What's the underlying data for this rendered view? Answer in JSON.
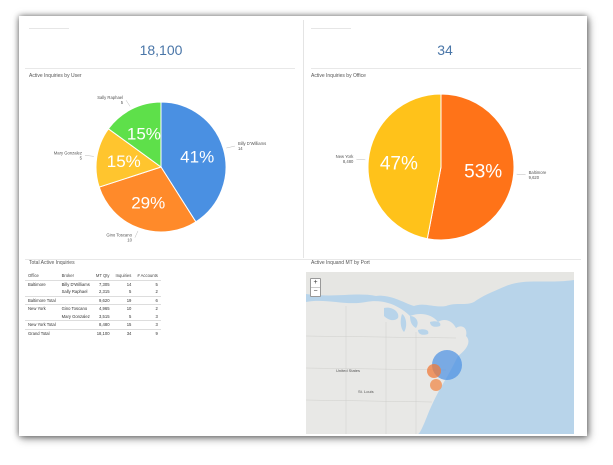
{
  "kpis": {
    "left_value": "18,100",
    "right_value": "34"
  },
  "pie_user": {
    "title": "Active Inquiries by User",
    "chart_data": {
      "type": "pie",
      "slices": [
        {
          "name": "Billy D'Williams",
          "count": "14",
          "value": 41,
          "label": "41%",
          "color": "#4a90e2"
        },
        {
          "name": "Gino Toscano",
          "count": "10",
          "value": 29,
          "label": "29%",
          "color": "#ff8a2a"
        },
        {
          "name": "Mary Gonzalez",
          "count": "5",
          "value": 15,
          "label": "15%",
          "color": "#ffc52e"
        },
        {
          "name": "Sally Raphael",
          "count": "5",
          "value": 15,
          "label": "15%",
          "color": "#5ee04a"
        }
      ]
    }
  },
  "pie_office": {
    "title": "Active Inquiries by Office",
    "chart_data": {
      "type": "pie",
      "slices": [
        {
          "name": "Baltimore",
          "count": "9,620",
          "value": 53,
          "label": "53%",
          "color": "#ff7318"
        },
        {
          "name": "New York",
          "count": "8,480",
          "value": 47,
          "label": "47%",
          "color": "#ffc21a"
        }
      ]
    }
  },
  "table": {
    "title": "Total Active Inquiries",
    "columns": [
      "Office",
      "Broker",
      "MT Qty",
      "Inquiries",
      "# Accounts"
    ],
    "rows": [
      {
        "office": "Baltimore",
        "broker": "Billy D'Williams",
        "qty": "7,305",
        "inq": "14",
        "acc": "5",
        "sub": false
      },
      {
        "office": "",
        "broker": "Sally Raphael",
        "qty": "2,315",
        "inq": "5",
        "acc": "2",
        "sub": true
      },
      {
        "office": "Baltimore Total",
        "broker": "",
        "qty": "9,620",
        "inq": "19",
        "acc": "6",
        "sub": true
      },
      {
        "office": "New York",
        "broker": "Gino Toscano",
        "qty": "4,965",
        "inq": "10",
        "acc": "2",
        "sub": false
      },
      {
        "office": "",
        "broker": "Mary Gonzalez",
        "qty": "3,515",
        "inq": "5",
        "acc": "3",
        "sub": true
      },
      {
        "office": "New York Total",
        "broker": "",
        "qty": "8,480",
        "inq": "15",
        "acc": "3",
        "sub": true
      },
      {
        "office": "Grand Total",
        "broker": "",
        "qty": "18,100",
        "inq": "34",
        "acc": "9",
        "sub": false
      }
    ]
  },
  "map": {
    "title": "Active Inquand MT by Port",
    "zoom_in": "+",
    "zoom_out": "−",
    "country_label": "United States",
    "city_label": "St. Louis",
    "water_color": "#b8d4ea",
    "land_color": "#e6e6e4"
  }
}
